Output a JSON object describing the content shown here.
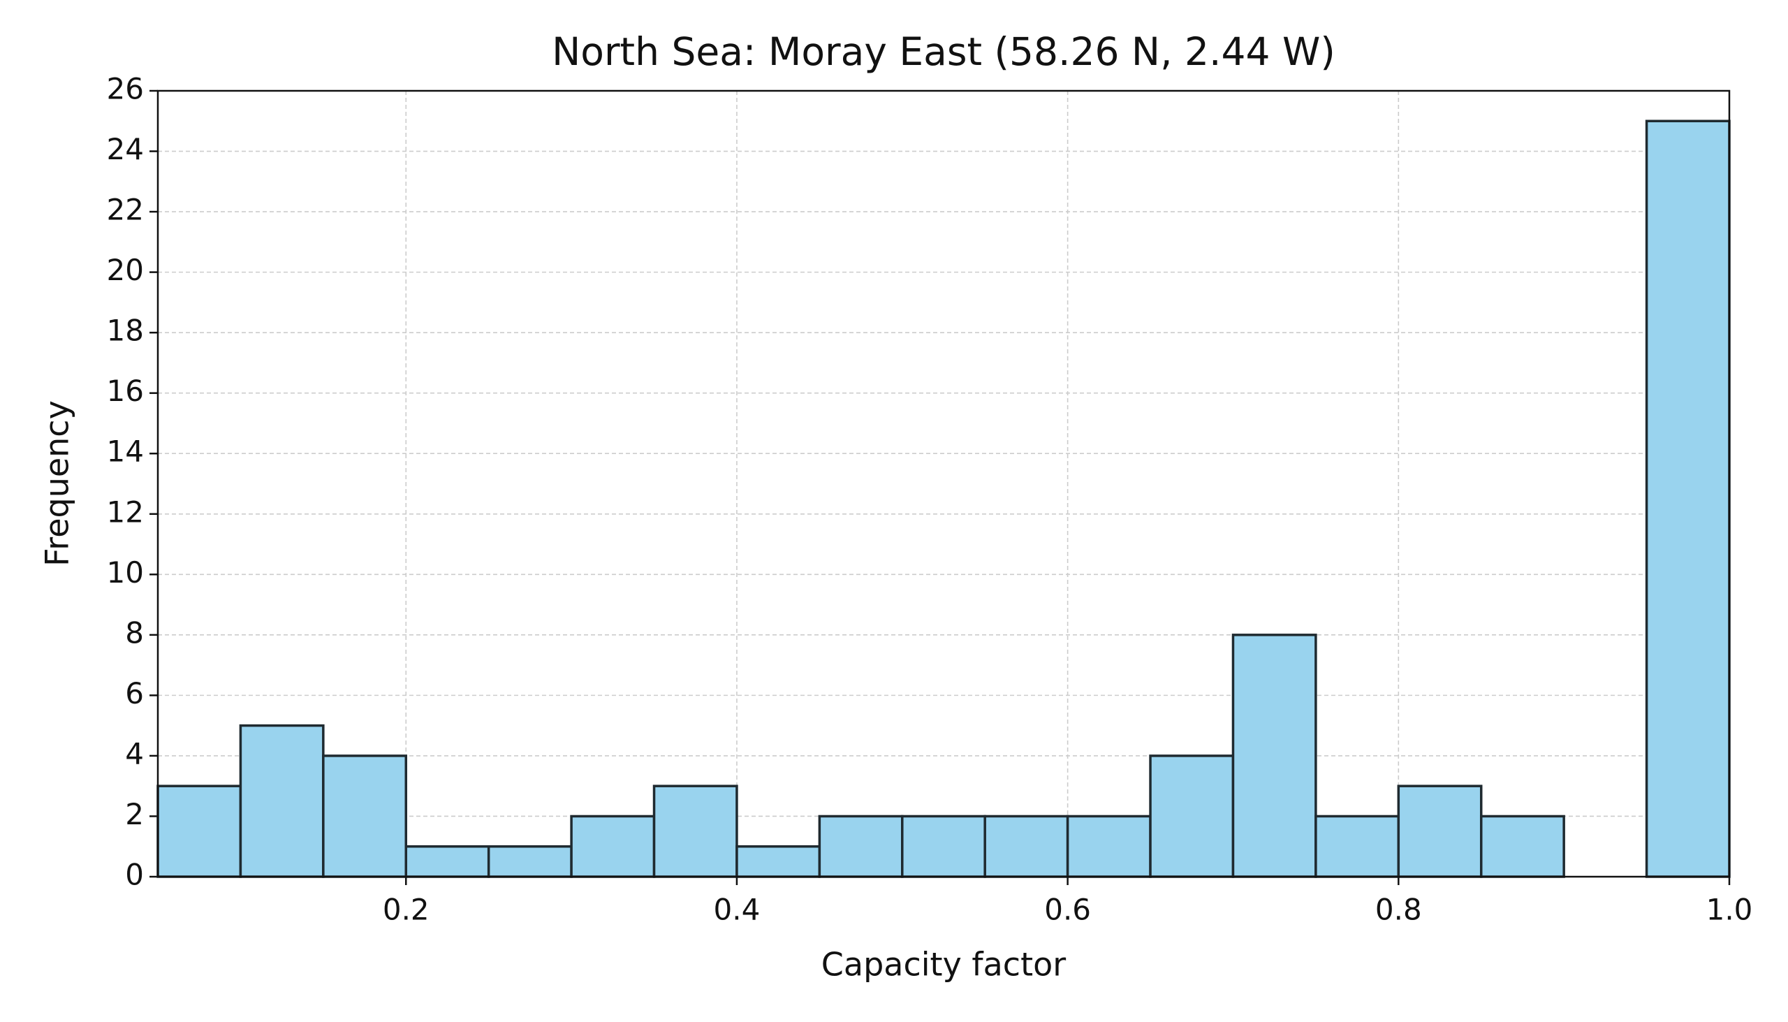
{
  "chart_data": {
    "type": "histogram",
    "title": "North Sea: Moray East (58.26 N, 2.44 W)",
    "x_label": "Capacity factor",
    "y_label": "Frequency",
    "bins": [
      0.05,
      0.1,
      0.15,
      0.2,
      0.25,
      0.3,
      0.35,
      0.4,
      0.45,
      0.5,
      0.55,
      0.6,
      0.65,
      0.7,
      0.75,
      0.8,
      0.85,
      0.9,
      0.95,
      1
    ],
    "values": [
      3,
      5,
      4,
      1,
      1,
      2,
      3,
      1,
      2,
      2,
      2,
      2,
      4,
      8,
      2,
      3,
      2,
      0,
      25
    ],
    "color": "#99d3ee",
    "edgecolor": "#1f2a30",
    "xlim": [
      0.05,
      1
    ],
    "xticks": [
      0.2,
      0.4,
      0.6,
      0.8,
      {
        "value": 1,
        "label": "1.0"
      }
    ],
    "ylim": [
      0,
      26
    ],
    "yticks": [
      0,
      2,
      4,
      6,
      8,
      10,
      12,
      14,
      16,
      18,
      20,
      22,
      24,
      26
    ],
    "grid": true
  }
}
